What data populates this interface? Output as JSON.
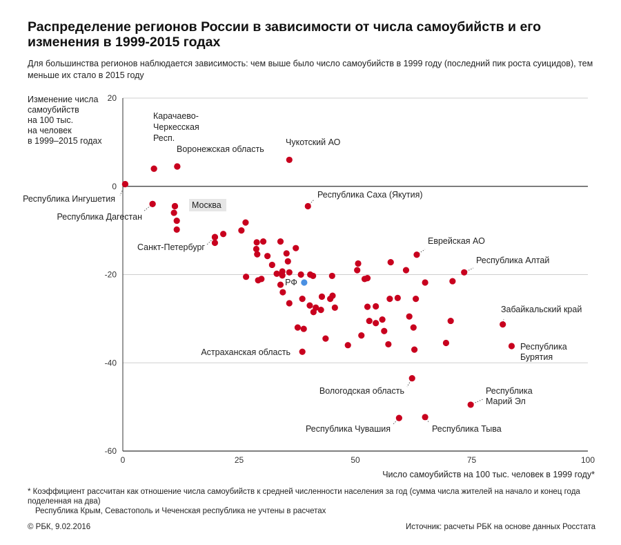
{
  "title": "Распределение регионов России в зависимости от числа самоубийств и его изменения в 1999-2015 годах",
  "subtitle": "Для большинства регионов наблюдается зависимость: чем выше было число самоубийств в 1999 году (последний пик роста суицидов), тем меньше их стало в 2015 году",
  "footnote": {
    "line1": "* Коэффициент рассчитан как отношение числа самоубийств к средней численности населения за год (сумма числа жителей на начало и конец года поделенная на два)",
    "line2": "Республика Крым, Севастополь и Чеченская республика не учтены в расчетах"
  },
  "footer": {
    "copyright": "© РБК, 9.02.2016",
    "source": "Источник: расчеты РБК на основе данных Росстата"
  },
  "chart_data": {
    "type": "scatter",
    "xlabel": "Число самоубийств на 100 тыс. человек в 1999 году*",
    "ylabel": "Изменение числа самоубийств на 100 тыс. на человек в 1999–2015 годах",
    "ylabel_lines": [
      "Изменение числа",
      "самоубийств",
      "на 100 тыс.",
      "на человек",
      "в 1999–2015 годах"
    ],
    "xlim": [
      0,
      100
    ],
    "ylim": [
      -60,
      20
    ],
    "xticks": [
      0,
      25,
      50,
      75,
      100
    ],
    "yticks": [
      20,
      0,
      -20,
      -40,
      -60
    ],
    "grid": "horizontal",
    "point_color": "#c8001e",
    "highlight_color": "#4a90e2",
    "points": [
      [
        0.5,
        0.5
      ],
      [
        6.4,
        -4.0
      ],
      [
        6.7,
        4.0
      ],
      [
        11.2,
        -4.5
      ],
      [
        11.0,
        -6.0
      ],
      [
        11.6,
        -7.8
      ],
      [
        11.7,
        4.5
      ],
      [
        11.6,
        -9.8
      ],
      [
        19.8,
        -11.5
      ],
      [
        19.8,
        -12.8
      ],
      [
        21.6,
        -10.8
      ],
      [
        25.5,
        -10.0
      ],
      [
        26.4,
        -8.2
      ],
      [
        26.5,
        -20.5
      ],
      [
        28.8,
        -12.7
      ],
      [
        28.7,
        -14.2
      ],
      [
        28.9,
        -15.4
      ],
      [
        29.1,
        -21.3
      ],
      [
        29.8,
        -21.0
      ],
      [
        30.2,
        -12.5
      ],
      [
        31.1,
        -15.8
      ],
      [
        32.1,
        -17.8
      ],
      [
        33.1,
        -19.8
      ],
      [
        33.9,
        -12.5
      ],
      [
        33.9,
        -22.3
      ],
      [
        34.3,
        -19.3
      ],
      [
        34.3,
        -20.2
      ],
      [
        34.4,
        -24.0
      ],
      [
        35.2,
        -15.2
      ],
      [
        35.8,
        -26.5
      ],
      [
        35.8,
        -19.5
      ],
      [
        35.5,
        -17.0
      ],
      [
        37.2,
        -14.0
      ],
      [
        37.6,
        -32.0
      ],
      [
        38.3,
        -20.0
      ],
      [
        38.6,
        -25.5
      ],
      [
        38.9,
        -32.3
      ],
      [
        40.2,
        -27.0
      ],
      [
        40.3,
        -20.0
      ],
      [
        40.9,
        -20.3
      ],
      [
        41.0,
        -28.5
      ],
      [
        41.5,
        -27.5
      ],
      [
        42.6,
        -28.0
      ],
      [
        42.8,
        -25.0
      ],
      [
        43.6,
        -34.5
      ],
      [
        44.6,
        -25.5
      ],
      [
        45.0,
        -20.3
      ],
      [
        45.1,
        -24.8
      ],
      [
        45.6,
        -27.5
      ],
      [
        48.4,
        -36.0
      ],
      [
        50.6,
        -17.5
      ],
      [
        50.4,
        -19.0
      ],
      [
        51.3,
        -33.8
      ],
      [
        52.0,
        -21.0
      ],
      [
        52.6,
        -20.8
      ],
      [
        52.6,
        -27.3
      ],
      [
        53.0,
        -30.5
      ],
      [
        54.4,
        -27.2
      ],
      [
        54.4,
        -31.0
      ],
      [
        55.8,
        -30.2
      ],
      [
        56.2,
        -32.8
      ],
      [
        57.1,
        -35.8
      ],
      [
        57.6,
        -17.2
      ],
      [
        57.4,
        -25.5
      ],
      [
        59.1,
        -25.3
      ],
      [
        60.9,
        -19.0
      ],
      [
        61.6,
        -29.5
      ],
      [
        62.5,
        -32.0
      ],
      [
        62.7,
        -37.0
      ],
      [
        63.0,
        -25.5
      ],
      [
        65.0,
        -21.8
      ],
      [
        69.5,
        -35.5
      ],
      [
        70.5,
        -30.5
      ],
      [
        70.9,
        -21.5
      ]
    ],
    "rf_point": {
      "x": 39.0,
      "y": -21.8,
      "label": "РФ"
    },
    "labeled_points": [
      {
        "name": "Республика Ингушетия",
        "x": 0.5,
        "y": 0.5
      },
      {
        "name": "Карачаево-Черкесская Респ.",
        "lines": [
          "Карачаево-",
          "Черкесская",
          "Респ."
        ],
        "x": 6.7,
        "y": 4.0
      },
      {
        "name": "Воронежская область",
        "x": 11.7,
        "y": 4.5
      },
      {
        "name": "Республика Дагестан",
        "x": 6.4,
        "y": -4.0
      },
      {
        "name": "Москва",
        "x": 11.2,
        "y": -4.5
      },
      {
        "name": "Санкт-Петербург",
        "x": 19.8,
        "y": -11.5
      },
      {
        "name": "Чукотский АО",
        "x": 35.8,
        "y": 6.0
      },
      {
        "name": "Республика Саха (Якутия)",
        "x": 39.8,
        "y": -4.5
      },
      {
        "name": "Еврейская АО",
        "x": 63.2,
        "y": -15.5
      },
      {
        "name": "Республика Алтай",
        "x": 73.4,
        "y": -19.5
      },
      {
        "name": "Забайкальский край",
        "x": 81.7,
        "y": -31.3
      },
      {
        "name": "Республика Бурятия",
        "lines": [
          "Республика",
          "Бурятия"
        ],
        "x": 83.6,
        "y": -36.2
      },
      {
        "name": "Астраханская область",
        "x": 38.6,
        "y": -37.5
      },
      {
        "name": "Вологодская область",
        "x": 62.2,
        "y": -43.5
      },
      {
        "name": "Республика Марий Эл",
        "lines": [
          "Республика",
          "Марий Эл"
        ],
        "x": 74.8,
        "y": -49.5
      },
      {
        "name": "Республика Чувашия",
        "x": 59.4,
        "y": -52.5
      },
      {
        "name": "Республика Тыва",
        "x": 65.0,
        "y": -52.3
      }
    ]
  }
}
